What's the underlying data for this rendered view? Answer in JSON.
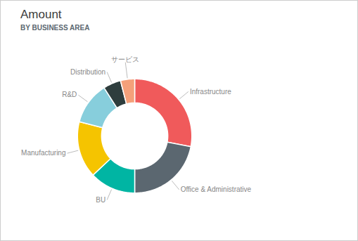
{
  "chart_data": {
    "type": "donut",
    "title": "Amount",
    "subtitle": "BY BUSINESS AREA",
    "categories": [
      "Infrastructure",
      "Office & Administrative",
      "BU",
      "Manufacturing",
      "R&D",
      "Distribution",
      "サービス"
    ],
    "values": [
      28,
      22,
      13,
      16,
      12,
      5,
      4
    ],
    "colors": [
      "#F05A5B",
      "#5B6770",
      "#00B5A3",
      "#F5C400",
      "#87CEDC",
      "#2E3D3D",
      "#F4A07A"
    ],
    "tick_labels": false
  }
}
